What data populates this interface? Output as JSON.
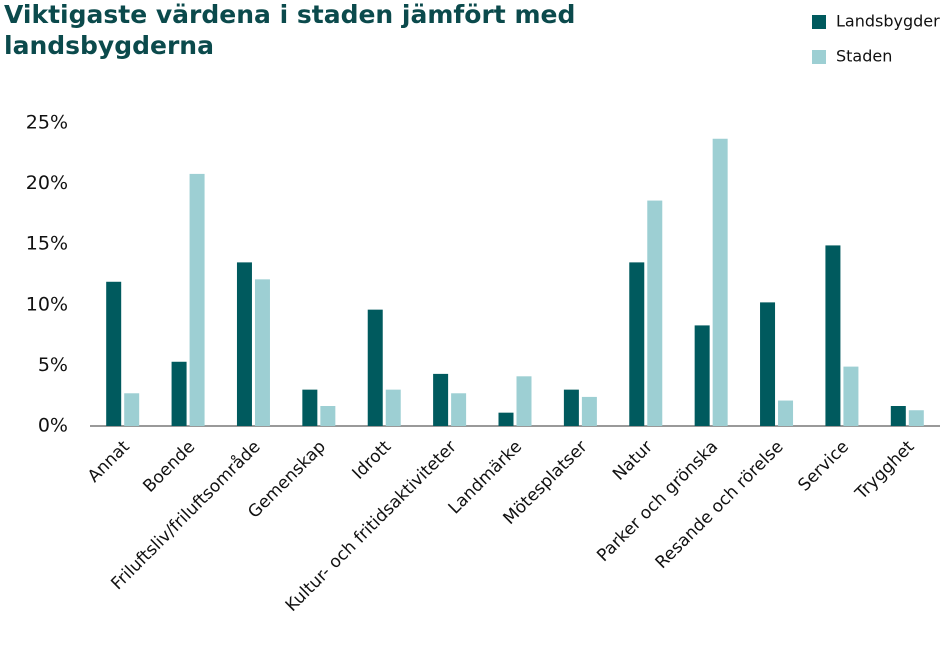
{
  "chart_data": {
    "type": "bar",
    "title": [
      "Viktigaste värdena  i staden jämfört med",
      "landsbygderna"
    ],
    "categories": [
      "Annat",
      "Boende",
      "Friluftsliv/friluftsområde",
      "Gemenskap",
      "Idrott",
      "Kultur- och fritidsaktiviteter",
      "Landmärke",
      "Mötesplatser",
      "Natur",
      "Parker och grönska",
      "Resande och rörelse",
      "Service",
      "Trygghet"
    ],
    "series": [
      {
        "name": "Landsbygder",
        "color": "#005a5e",
        "values": [
          11.9,
          5.3,
          13.5,
          3.0,
          9.6,
          4.3,
          1.1,
          3.0,
          13.5,
          8.3,
          10.2,
          14.9,
          1.65
        ]
      },
      {
        "name": "Staden",
        "color": "#9dcfd3",
        "values": [
          2.7,
          20.8,
          12.1,
          1.65,
          3.0,
          2.7,
          4.1,
          2.4,
          18.6,
          23.7,
          2.1,
          4.9,
          1.3
        ]
      }
    ],
    "ylim": [
      0,
      25
    ],
    "yticks": [
      {
        "value": 0,
        "label": "0%"
      },
      {
        "value": 5,
        "label": "5%"
      },
      {
        "value": 10,
        "label": "10%"
      },
      {
        "value": 15,
        "label": "15%"
      },
      {
        "value": 20,
        "label": "20%"
      },
      {
        "value": 25,
        "label": "25%"
      }
    ],
    "legend": "top-right"
  }
}
